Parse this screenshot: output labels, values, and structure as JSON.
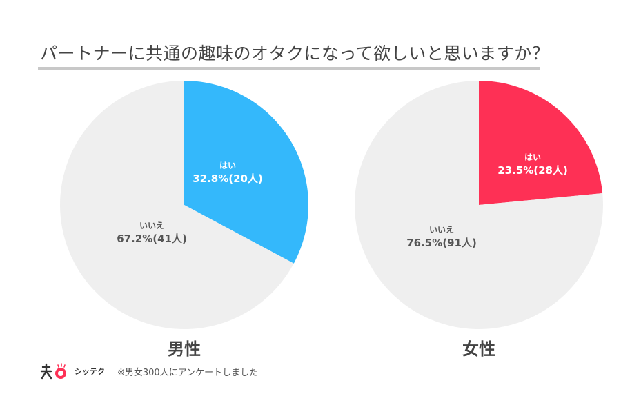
{
  "title": "パートナーに共通の趣味のオタクになって欲しいと思いますか？",
  "footer": {
    "brand": "シッテク",
    "note": "※男女300人にアンケートしました"
  },
  "colors": {
    "yes_male": "#34b8fb",
    "yes_female": "#fe3055",
    "no": "#efefef",
    "text": "#444444",
    "rule": "#c8c8c8"
  },
  "chart_data": [
    {
      "type": "pie",
      "title": "男性",
      "categories": [
        "はい",
        "いいえ"
      ],
      "values": [
        32.8,
        67.2
      ],
      "counts": [
        "20人",
        "41人"
      ],
      "labels": [
        "32.8%(20人)",
        "67.2%(41人)"
      ],
      "colors": [
        "#34b8fb",
        "#efefef"
      ]
    },
    {
      "type": "pie",
      "title": "女性",
      "categories": [
        "はい",
        "いいえ"
      ],
      "values": [
        23.5,
        76.5
      ],
      "counts": [
        "28人",
        "91人"
      ],
      "labels": [
        "23.5%(28人)",
        "76.5%(91人)"
      ],
      "colors": [
        "#fe3055",
        "#efefef"
      ]
    }
  ]
}
